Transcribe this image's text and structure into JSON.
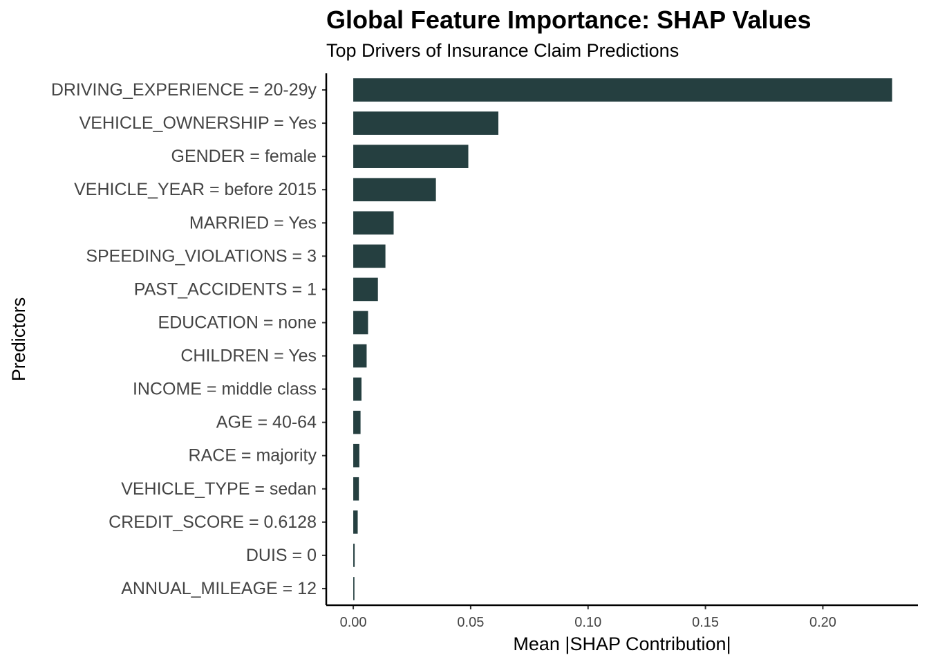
{
  "chart_data": {
    "type": "bar",
    "orientation": "horizontal",
    "title": "Global Feature Importance: SHAP Values",
    "subtitle": "Top Drivers of Insurance Claim Predictions",
    "xlabel": "Mean |SHAP Contribution|",
    "ylabel": "Predictors",
    "xlim": [
      -0.0115,
      0.2405
    ],
    "xticks": [
      0.0,
      0.05,
      0.1,
      0.15,
      0.2
    ],
    "xtick_labels": [
      "0.00",
      "0.05",
      "0.10",
      "0.15",
      "0.20"
    ],
    "grid": false,
    "bar_color": "#253F40",
    "categories": [
      "DRIVING_EXPERIENCE = 20-29y",
      "VEHICLE_OWNERSHIP = Yes",
      "GENDER = female",
      "VEHICLE_YEAR = before 2015",
      "MARRIED = Yes",
      "SPEEDING_VIOLATIONS = 3",
      "PAST_ACCIDENTS = 1",
      "EDUCATION = none",
      "CHILDREN = Yes",
      "INCOME = middle class",
      "AGE = 40-64",
      "RACE = majority",
      "VEHICLE_TYPE = sedan",
      "CREDIT_SCORE = 0.6128",
      "DUIS = 0",
      "ANNUAL_MILEAGE = 12"
    ],
    "values": [
      0.2295,
      0.0618,
      0.049,
      0.0352,
      0.0172,
      0.0137,
      0.0105,
      0.0063,
      0.0057,
      0.0035,
      0.0031,
      0.0026,
      0.0024,
      0.0019,
      0.0006,
      0.0005
    ]
  }
}
